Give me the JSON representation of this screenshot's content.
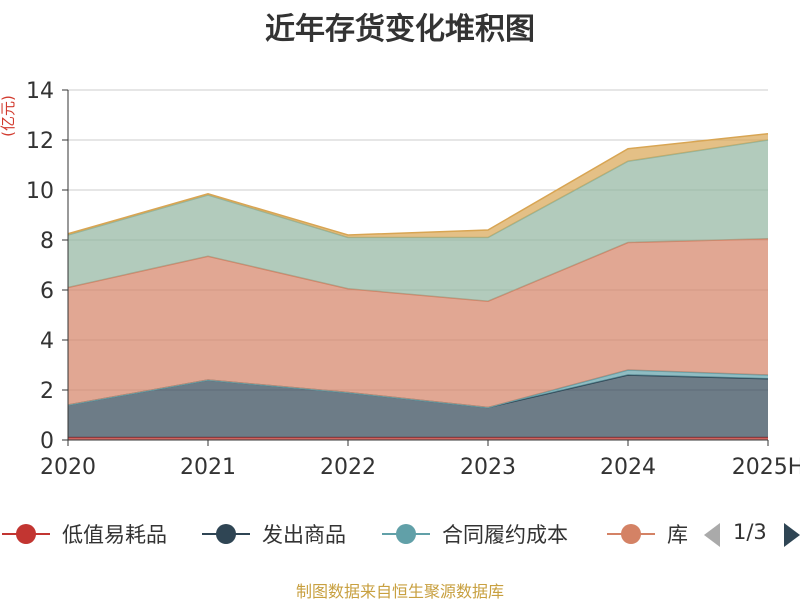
{
  "chart_data": {
    "type": "area",
    "stacked": true,
    "title": "近年存货变化堆积图",
    "unit_label": "(亿元)",
    "categories": [
      "2020",
      "2021",
      "2022",
      "2023",
      "2024",
      "2025H"
    ],
    "ylim": [
      0,
      14
    ],
    "yticks": [
      0,
      2,
      4,
      6,
      8,
      10,
      12,
      14
    ],
    "grid": true,
    "legend_position": "bottom",
    "series": [
      {
        "name": "低值易耗品",
        "color": "#c23531",
        "values": [
          0.1,
          0.1,
          0.1,
          0.1,
          0.1,
          0.1
        ]
      },
      {
        "name": "发出商品",
        "color": "#2f4554",
        "values": [
          1.3,
          2.3,
          1.8,
          1.2,
          2.5,
          2.35
        ]
      },
      {
        "name": "合同履约成本",
        "color": "#61a0a8",
        "values": [
          0.0,
          0.0,
          0.0,
          0.0,
          0.2,
          0.15
        ]
      },
      {
        "name": "库存商品",
        "color": "#d48265",
        "values": [
          4.7,
          4.95,
          4.15,
          4.25,
          5.1,
          5.45
        ]
      },
      {
        "name": "",
        "color": "#91b59f",
        "values": [
          2.1,
          2.45,
          2.05,
          2.55,
          3.25,
          3.95
        ]
      },
      {
        "name": "",
        "color": "#d8a553",
        "values": [
          0.05,
          0.05,
          0.1,
          0.3,
          0.5,
          0.25
        ]
      }
    ]
  },
  "legend": {
    "items": [
      "低值易耗品",
      "发出商品",
      "合同履约成本",
      "库"
    ],
    "page_text": "1/3"
  },
  "source_text": "制图数据来自恒生聚源数据库"
}
